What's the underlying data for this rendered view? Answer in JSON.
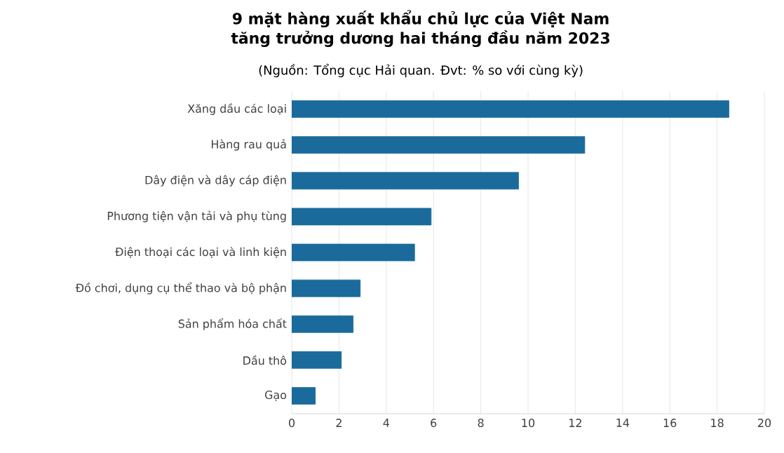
{
  "chart_data": {
    "type": "bar",
    "orientation": "horizontal",
    "title": "9 mặt hàng xuất khẩu chủ lực của Việt Nam\ntăng trưởng dương hai tháng đầu năm 2023",
    "subtitle": "(Nguồn: Tổng cục Hải quan. Đvt: % so với cùng kỳ)",
    "categories": [
      "Xăng dầu các loại",
      "Hàng rau quả",
      "Dây điện và dây cáp điện",
      "Phương tiện vận tải và phụ tùng",
      "Điện thoại các loại và linh kiện",
      "Đồ chơi, dụng cụ thể thao và bộ phận",
      "Sản phẩm hóa chất",
      "Dầu thô",
      "Gạo"
    ],
    "values": [
      18.5,
      12.4,
      9.6,
      5.9,
      5.2,
      2.9,
      2.6,
      2.1,
      1.0
    ],
    "color": "#1a6b9c",
    "xlim": [
      0,
      20
    ],
    "xticks": [
      0,
      2,
      4,
      6,
      8,
      10,
      12,
      14,
      16,
      18,
      20
    ],
    "grid": "x"
  }
}
